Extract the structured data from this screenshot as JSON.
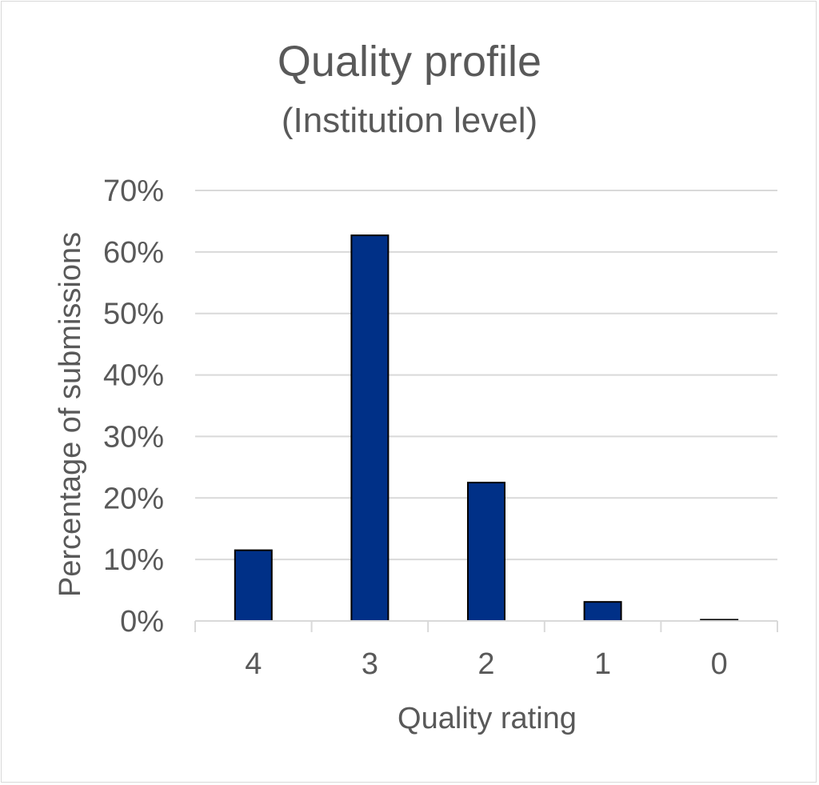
{
  "chart_data": {
    "type": "bar",
    "title": "Quality profile",
    "subtitle": "(Institution level)",
    "xlabel": "Quality rating",
    "ylabel": "Percentage of submissions",
    "categories": [
      "4",
      "3",
      "2",
      "1",
      "0"
    ],
    "values": [
      11.5,
      62.7,
      22.5,
      3.1,
      0.2
    ],
    "ylim": [
      0,
      70
    ],
    "yticks": [
      0,
      10,
      20,
      30,
      40,
      50,
      60,
      70
    ],
    "ytick_labels": [
      "0%",
      "10%",
      "20%",
      "30%",
      "40%",
      "50%",
      "60%",
      "70%"
    ],
    "grid": true,
    "legend": "none",
    "bar_color": "#003087",
    "bar_edge_color": "#000000"
  }
}
